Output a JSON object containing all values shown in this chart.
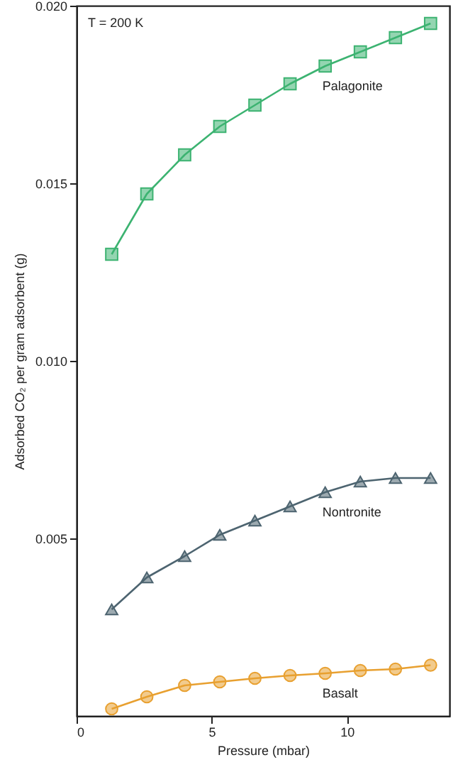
{
  "chart_data": {
    "type": "line",
    "xlabel": "Pressure (mbar)",
    "ylabel": "Adsorbed CO₂ per gram adsorbent (g)",
    "annotations": [
      "T = 200 K"
    ],
    "x": [
      1.3,
      2.6,
      4.0,
      5.3,
      6.6,
      7.9,
      9.2,
      10.5,
      11.8,
      13.1
    ],
    "xlim": [
      0,
      13.8
    ],
    "xticks": [
      0,
      5,
      10
    ],
    "ylim": [
      0,
      0.02
    ],
    "yticks": [
      {
        "value": 0.005,
        "label": "0.005"
      },
      {
        "value": 0.01,
        "label": "0.010"
      },
      {
        "value": 0.015,
        "label": "0.015"
      },
      {
        "value": 0.02,
        "label": "0.020"
      }
    ],
    "line_style": "solid",
    "series": [
      {
        "name": "Palagonite",
        "color": "#3cb371",
        "marker": "square",
        "values": [
          0.013,
          0.0147,
          0.0158,
          0.0166,
          0.0172,
          0.0178,
          0.0183,
          0.0187,
          0.0191,
          0.0195
        ]
      },
      {
        "name": "Nontronite",
        "color": "#4d6470",
        "marker": "triangle",
        "values": [
          0.003,
          0.0039,
          0.0045,
          0.0051,
          0.0055,
          0.0059,
          0.0063,
          0.0066,
          0.0067,
          0.0067
        ]
      },
      {
        "name": "Basalt",
        "color": "#e8a030",
        "marker": "circle",
        "values": [
          0.0002,
          0.00054,
          0.00086,
          0.00096,
          0.00106,
          0.00114,
          0.0012,
          0.00128,
          0.00132,
          0.00143
        ]
      }
    ]
  }
}
